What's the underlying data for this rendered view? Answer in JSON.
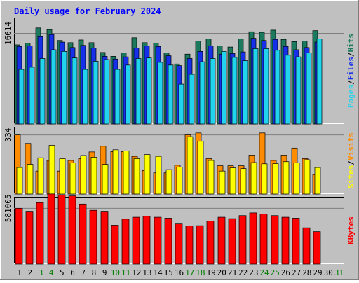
{
  "chart_data": [
    {
      "panel": "hits_files_pages",
      "type": "bar",
      "title": "Daily usage for February 2024",
      "ylabel_parts": [
        "Pages",
        "Files",
        "Hits"
      ],
      "ytick_label": "16614",
      "ytick_value": 16614,
      "ylim": [
        0,
        19500
      ],
      "series": [
        {
          "name": "Hits",
          "color": "#1B7A5E",
          "values": [
            14500,
            14800,
            17600,
            17300,
            15300,
            14900,
            15400,
            14900,
            13100,
            12400,
            13000,
            15800,
            14900,
            14800,
            13000,
            11000,
            12800,
            15200,
            15600,
            14300,
            14100,
            15600,
            16900,
            16800,
            17200,
            15500,
            15100,
            15200,
            17100,
            null,
            null
          ]
        },
        {
          "name": "Files",
          "color": "#1530E8",
          "values": [
            14200,
            14300,
            16000,
            16400,
            15000,
            14000,
            14400,
            13900,
            12400,
            11900,
            12300,
            13900,
            14300,
            14200,
            12500,
            10700,
            12000,
            13300,
            14300,
            12800,
            12900,
            13200,
            15700,
            15300,
            15500,
            14200,
            13600,
            14000,
            15000,
            null,
            null
          ]
        },
        {
          "name": "Pages",
          "color": "#21D3EC",
          "values": [
            10000,
            10400,
            12000,
            13600,
            13300,
            12100,
            10000,
            11500,
            11800,
            10000,
            10800,
            12000,
            12100,
            11300,
            10800,
            7300,
            9100,
            11400,
            12000,
            13300,
            12200,
            11600,
            13800,
            13800,
            13500,
            12600,
            12300,
            13000,
            15600,
            null,
            null
          ]
        }
      ]
    },
    {
      "panel": "sites_visits",
      "type": "bar",
      "ylabel_parts": [
        "Sites",
        "Visits"
      ],
      "ytick_label": "334",
      "ytick_value": 334,
      "ylim": [
        0,
        380
      ],
      "series": [
        {
          "name": "Visits",
          "color": "#FF8C00",
          "values": [
            334,
            286,
            130,
            190,
            130,
            190,
            200,
            238,
            270,
            240,
            240,
            213,
            133,
            120,
            120,
            163,
            334,
            345,
            200,
            160,
            160,
            160,
            220,
            345,
            190,
            220,
            260,
            200,
            110,
            null,
            null
          ]
        },
        {
          "name": "Sites",
          "color": "#FFFF00",
          "values": [
            150,
            168,
            205,
            275,
            200,
            176,
            218,
            208,
            168,
            250,
            243,
            200,
            223,
            213,
            138,
            153,
            324,
            298,
            190,
            130,
            148,
            144,
            178,
            171,
            172,
            183,
            176,
            194,
            150,
            null,
            null
          ]
        }
      ]
    },
    {
      "panel": "kbytes",
      "type": "bar",
      "ylabel_parts": [
        "KBytes"
      ],
      "ytick_label": "581005",
      "ytick_value": 581005,
      "ylim": [
        0,
        700000
      ],
      "series": [
        {
          "name": "KBytes",
          "color": "#FF0000",
          "values": [
            581000,
            550000,
            640000,
            730000,
            720000,
            710000,
            625000,
            560000,
            550000,
            405000,
            468000,
            488000,
            498000,
            488000,
            478000,
            418000,
            398000,
            400000,
            448000,
            488000,
            473000,
            505000,
            533000,
            520000,
            505000,
            488000,
            478000,
            378000,
            338000,
            null,
            null
          ]
        }
      ]
    }
  ],
  "x_axis": {
    "days": [
      "1",
      "2",
      "3",
      "4",
      "5",
      "6",
      "7",
      "8",
      "9",
      "10",
      "11",
      "12",
      "13",
      "14",
      "15",
      "16",
      "17",
      "18",
      "19",
      "20",
      "21",
      "22",
      "23",
      "24",
      "25",
      "26",
      "27",
      "28",
      "29",
      "30",
      "31"
    ],
    "weekend_days": [
      "3",
      "4",
      "10",
      "11",
      "17",
      "18",
      "24",
      "25",
      "31"
    ],
    "weekday_color": "#000000",
    "weekend_color": "#007F00"
  },
  "colors": {
    "frame_bg": "#C0C0C0",
    "plot_bg": "#C0C0C0",
    "title_color": "#0000FF"
  }
}
